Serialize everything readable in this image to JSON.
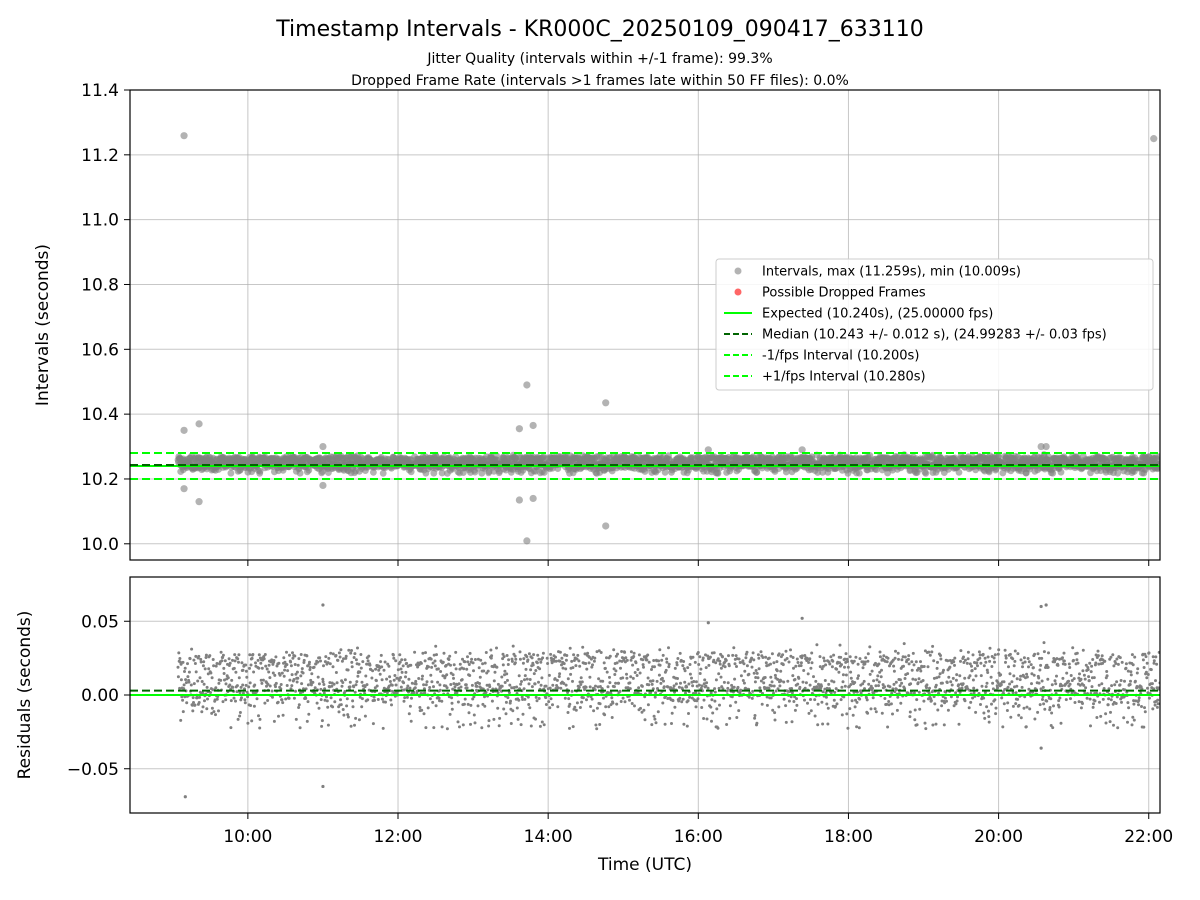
{
  "title": "Timestamp Intervals - KR000C_20250109_090417_633110",
  "subtitle_1": "Jitter Quality (intervals within +/-1 frame): 99.3%",
  "subtitle_2": "Dropped Frame Rate (intervals >1 frames late within 50 FF files): 0.0%",
  "colors": {
    "scatter": "#808080",
    "dropped": "#ff0000",
    "expected": "#00ff00",
    "median": "#006400",
    "bounds": "#00ff00",
    "grid": "#b0b0b0"
  },
  "chart_data": [
    {
      "type": "scatter",
      "ylabel": "Intervals (seconds)",
      "ylim": [
        9.95,
        11.4
      ],
      "yticks": [
        "10.0",
        "10.2",
        "10.4",
        "10.6",
        "10.8",
        "11.0",
        "11.2",
        "11.4"
      ],
      "xlim_hours": [
        8.43,
        22.15
      ],
      "grid": true,
      "legend_position": "center-right",
      "legend": [
        {
          "label": "Intervals, max (11.259s), min (10.009s)",
          "style": "dot-gray"
        },
        {
          "label": "Possible Dropped Frames",
          "style": "dot-red"
        },
        {
          "label": "Expected (10.240s), (25.00000 fps)",
          "style": "line-lime"
        },
        {
          "label": "Median (10.243 +/- 0.012 s), (24.99283 +/- 0.03 fps)",
          "style": "dash-darkgreen"
        },
        {
          "label": "-1/fps Interval (10.200s)",
          "style": "dash-lime"
        },
        {
          "label": "+1/fps Interval (10.280s)",
          "style": "dash-lime"
        }
      ],
      "reference_lines": {
        "expected": 10.24,
        "median": 10.243,
        "lower": 10.2,
        "upper": 10.28
      },
      "band": {
        "x_hours": [
          9.07,
          22.15
        ],
        "center": 10.243,
        "spread": 0.02
      },
      "outliers": [
        {
          "x": "09:09",
          "y": 11.259
        },
        {
          "x": "09:09",
          "y": 10.35
        },
        {
          "x": "09:09",
          "y": 10.17
        },
        {
          "x": "09:21",
          "y": 10.37
        },
        {
          "x": "09:21",
          "y": 10.13
        },
        {
          "x": "11:00",
          "y": 10.3
        },
        {
          "x": "11:00",
          "y": 10.18
        },
        {
          "x": "13:37",
          "y": 10.355
        },
        {
          "x": "13:37",
          "y": 10.135
        },
        {
          "x": "13:43",
          "y": 10.49
        },
        {
          "x": "13:43",
          "y": 10.009
        },
        {
          "x": "13:48",
          "y": 10.365
        },
        {
          "x": "13:48",
          "y": 10.14
        },
        {
          "x": "14:46",
          "y": 10.435
        },
        {
          "x": "14:46",
          "y": 10.055
        },
        {
          "x": "16:08",
          "y": 10.29
        },
        {
          "x": "17:23",
          "y": 10.29
        },
        {
          "x": "20:34",
          "y": 10.3
        },
        {
          "x": "20:38",
          "y": 10.3
        },
        {
          "x": "22:04",
          "y": 11.25
        }
      ]
    },
    {
      "type": "scatter",
      "xlabel": "Time (UTC)",
      "ylabel": "Residuals (seconds)",
      "ylim": [
        -0.08,
        0.08
      ],
      "yticks": [
        "−0.05",
        "0.00",
        "0.05"
      ],
      "xticks": [
        "10:00",
        "12:00",
        "14:00",
        "16:00",
        "18:00",
        "20:00",
        "22:00"
      ],
      "xlim_hours": [
        8.43,
        22.15
      ],
      "grid": true,
      "reference_lines": {
        "expected": 0.0,
        "median": 0.003
      },
      "outliers": [
        {
          "x": "09:10",
          "y": -0.069
        },
        {
          "x": "11:00",
          "y": 0.061
        },
        {
          "x": "11:00",
          "y": -0.062
        },
        {
          "x": "16:08",
          "y": 0.049
        },
        {
          "x": "17:23",
          "y": 0.052
        },
        {
          "x": "20:34",
          "y": 0.06
        },
        {
          "x": "20:38",
          "y": 0.061
        },
        {
          "x": "20:34",
          "y": -0.036
        }
      ]
    }
  ]
}
